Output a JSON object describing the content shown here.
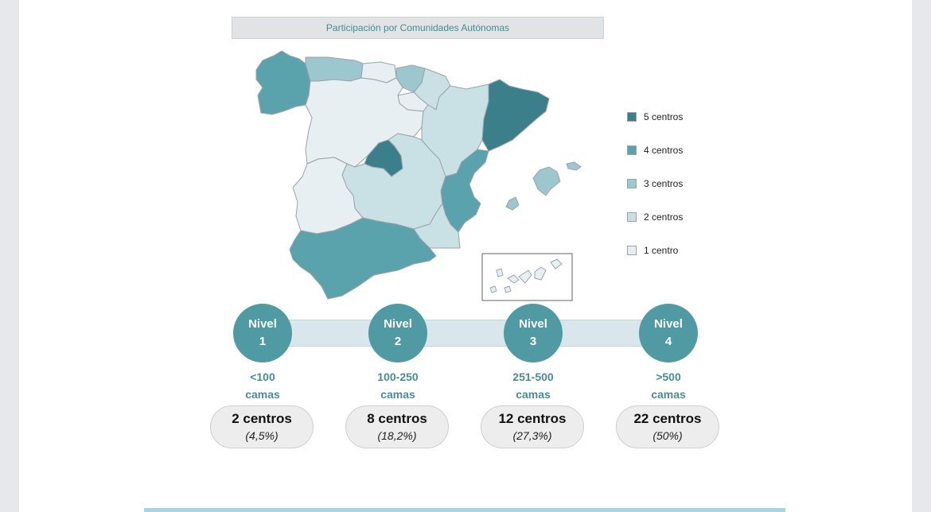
{
  "map": {
    "title": "Participación por Comunidades Autónomas",
    "legend": [
      {
        "label": "5 centros",
        "color": "#3a7f89"
      },
      {
        "label": "4 centros",
        "color": "#5aa3ac"
      },
      {
        "label": "3 centros",
        "color": "#9dc7ce"
      },
      {
        "label": "2 centros",
        "color": "#c9e0e4"
      },
      {
        "label": "1 centro",
        "color": "#e8eff2"
      }
    ],
    "regions": [
      {
        "name": "Galicia",
        "centros": 4
      },
      {
        "name": "Asturias",
        "centros": 3
      },
      {
        "name": "Cantabria",
        "centros": 1
      },
      {
        "name": "País Vasco",
        "centros": 3
      },
      {
        "name": "Navarra",
        "centros": 2
      },
      {
        "name": "La Rioja",
        "centros": 1
      },
      {
        "name": "Castilla y León",
        "centros": 1
      },
      {
        "name": "Aragón",
        "centros": 2
      },
      {
        "name": "Cataluña",
        "centros": 5
      },
      {
        "name": "Madrid",
        "centros": 5
      },
      {
        "name": "Castilla-La Mancha",
        "centros": 2
      },
      {
        "name": "Extremadura",
        "centros": 1
      },
      {
        "name": "Comunidad Valenciana",
        "centros": 4
      },
      {
        "name": "Murcia",
        "centros": 2
      },
      {
        "name": "Andalucía",
        "centros": 4
      },
      {
        "name": "Islas Baleares",
        "centros": 3
      },
      {
        "name": "Canarias",
        "centros": 1
      }
    ]
  },
  "levels": [
    {
      "line1": "Nivel",
      "line2": "1",
      "range1": "<100",
      "range2": "camas",
      "count": "2 centros",
      "pct": "(4,5%)"
    },
    {
      "line1": "Nivel",
      "line2": "2",
      "range1": "100-250",
      "range2": "camas",
      "count": "8 centros",
      "pct": "(18,2%)"
    },
    {
      "line1": "Nivel",
      "line2": "3",
      "range1": "251-500",
      "range2": "camas",
      "count": "12 centros",
      "pct": "(27,3%)"
    },
    {
      "line1": "Nivel",
      "line2": "4",
      "range1": ">500",
      "range2": "camas",
      "count": "22 centros",
      "pct": "(50%)"
    }
  ]
}
